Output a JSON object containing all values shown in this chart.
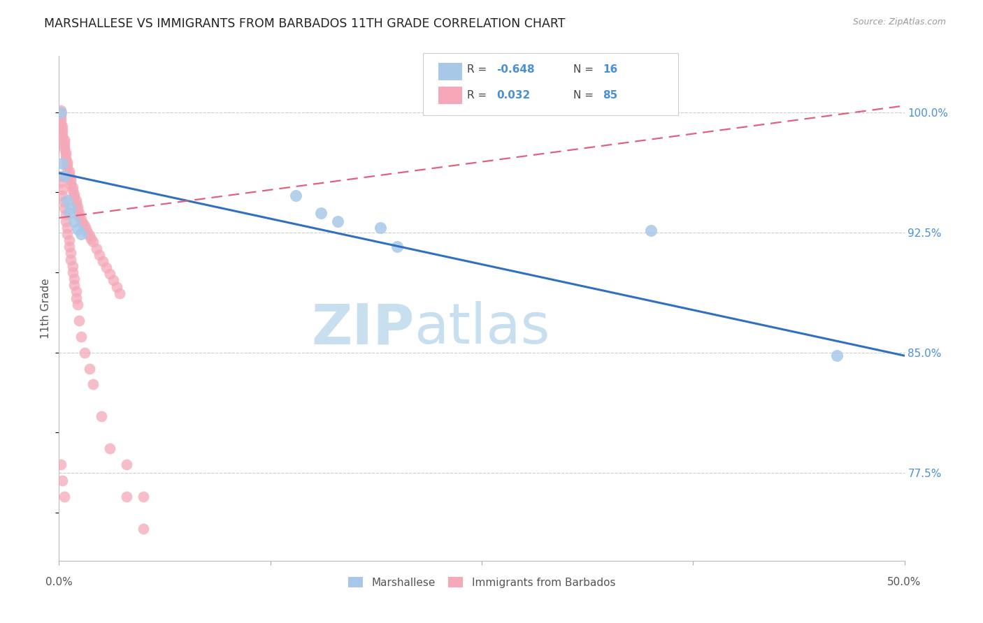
{
  "title": "MARSHALLESE VS IMMIGRANTS FROM BARBADOS 11TH GRADE CORRELATION CHART",
  "source": "Source: ZipAtlas.com",
  "ylabel": "11th Grade",
  "y_tick_labels": [
    "77.5%",
    "85.0%",
    "92.5%",
    "100.0%"
  ],
  "y_tick_values": [
    0.775,
    0.85,
    0.925,
    1.0
  ],
  "x_min": 0.0,
  "x_max": 0.5,
  "y_min": 0.72,
  "y_max": 1.035,
  "blue_color": "#a8c8e8",
  "pink_color": "#f4a8b8",
  "blue_line_color": "#3070c0",
  "pink_line_color": "#e06080",
  "blue_line_y0": 0.962,
  "blue_line_y1": 0.848,
  "pink_line_y0": 0.934,
  "pink_line_y1": 1.004,
  "marshallese_x": [
    0.001,
    0.002,
    0.003,
    0.005,
    0.007,
    0.009,
    0.011,
    0.013,
    0.14,
    0.155,
    0.165,
    0.19,
    0.2,
    0.35,
    0.46,
    0.006
  ],
  "marshallese_y": [
    1.0,
    0.968,
    0.96,
    0.945,
    0.94,
    0.932,
    0.927,
    0.924,
    0.948,
    0.937,
    0.932,
    0.928,
    0.916,
    0.926,
    0.848,
    0.937
  ],
  "barbados_x": [
    0.001,
    0.001,
    0.001,
    0.001,
    0.001,
    0.002,
    0.002,
    0.002,
    0.002,
    0.003,
    0.003,
    0.003,
    0.003,
    0.004,
    0.004,
    0.004,
    0.005,
    0.005,
    0.005,
    0.006,
    0.006,
    0.007,
    0.007,
    0.007,
    0.008,
    0.008,
    0.009,
    0.009,
    0.01,
    0.01,
    0.011,
    0.011,
    0.012,
    0.012,
    0.013,
    0.014,
    0.015,
    0.016,
    0.017,
    0.018,
    0.019,
    0.02,
    0.022,
    0.024,
    0.026,
    0.028,
    0.03,
    0.032,
    0.034,
    0.036,
    0.001,
    0.001,
    0.002,
    0.002,
    0.003,
    0.003,
    0.004,
    0.004,
    0.005,
    0.005,
    0.006,
    0.006,
    0.007,
    0.007,
    0.008,
    0.008,
    0.009,
    0.009,
    0.01,
    0.01,
    0.011,
    0.012,
    0.013,
    0.015,
    0.018,
    0.02,
    0.025,
    0.03,
    0.04,
    0.05,
    0.001,
    0.002,
    0.003,
    0.04,
    0.05
  ],
  "barbados_y": [
    1.001,
    0.999,
    0.997,
    0.995,
    0.993,
    0.991,
    0.989,
    0.987,
    0.985,
    0.983,
    0.981,
    0.979,
    0.977,
    0.975,
    0.973,
    0.971,
    0.969,
    0.967,
    0.965,
    0.963,
    0.961,
    0.959,
    0.957,
    0.955,
    0.953,
    0.951,
    0.949,
    0.947,
    0.945,
    0.943,
    0.941,
    0.939,
    0.937,
    0.935,
    0.933,
    0.931,
    0.929,
    0.927,
    0.925,
    0.923,
    0.921,
    0.919,
    0.915,
    0.911,
    0.907,
    0.903,
    0.899,
    0.895,
    0.891,
    0.887,
    0.96,
    0.956,
    0.952,
    0.948,
    0.944,
    0.94,
    0.936,
    0.932,
    0.928,
    0.924,
    0.92,
    0.916,
    0.912,
    0.908,
    0.904,
    0.9,
    0.896,
    0.892,
    0.888,
    0.884,
    0.88,
    0.87,
    0.86,
    0.85,
    0.84,
    0.83,
    0.81,
    0.79,
    0.76,
    0.74,
    0.78,
    0.77,
    0.76,
    0.78,
    0.76
  ]
}
